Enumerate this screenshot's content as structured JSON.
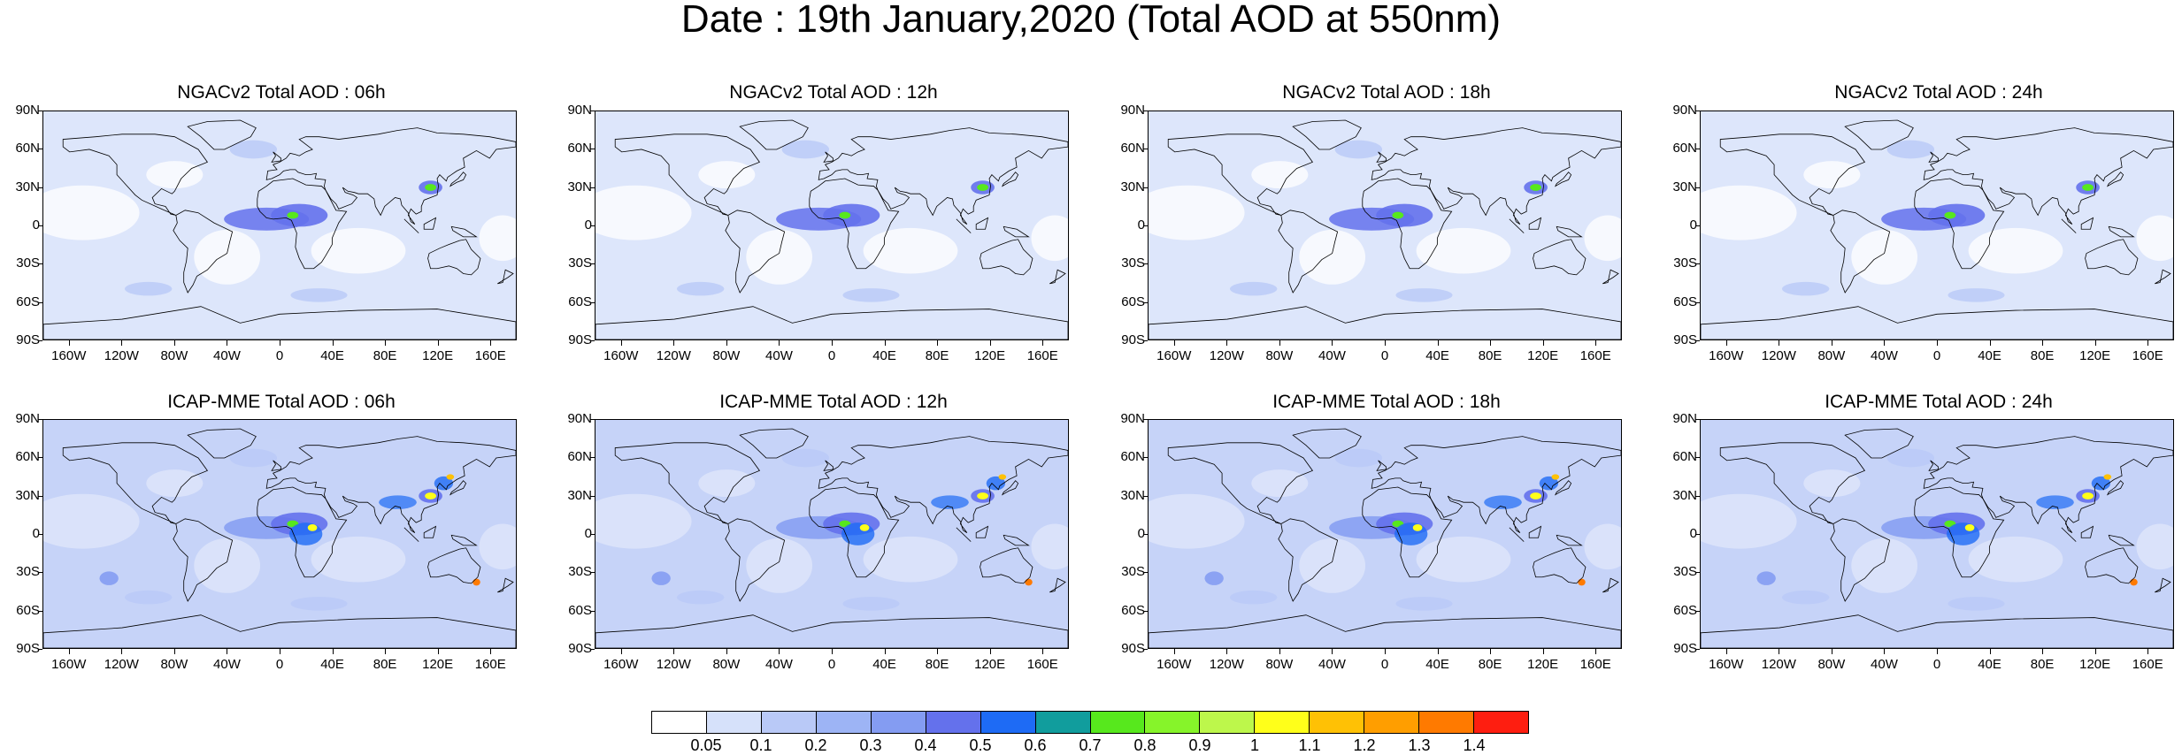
{
  "title": "Date : 19th January,2020 (Total AOD at 550nm)",
  "panels": [
    {
      "title": "NGACv2 Total AOD : 06h",
      "model": "NGACv2"
    },
    {
      "title": "NGACv2 Total AOD : 12h",
      "model": "NGACv2"
    },
    {
      "title": "NGACv2 Total AOD : 18h",
      "model": "NGACv2"
    },
    {
      "title": "NGACv2 Total AOD : 24h",
      "model": "NGACv2"
    },
    {
      "title": "ICAP-MME Total AOD : 06h",
      "model": "ICAP-MME"
    },
    {
      "title": "ICAP-MME Total AOD : 12h",
      "model": "ICAP-MME"
    },
    {
      "title": "ICAP-MME Total AOD : 18h",
      "model": "ICAP-MME"
    },
    {
      "title": "ICAP-MME Total AOD : 24h",
      "model": "ICAP-MME"
    }
  ],
  "lat_labels": [
    "90N",
    "60N",
    "30N",
    "0",
    "30S",
    "60S",
    "90S"
  ],
  "lon_labels": [
    "160W",
    "120W",
    "80W",
    "40W",
    "0",
    "40E",
    "80E",
    "120E",
    "160E"
  ],
  "colorbar": {
    "labels": [
      "0.05",
      "0.1",
      "0.2",
      "0.3",
      "0.4",
      "0.5",
      "0.6",
      "0.7",
      "0.8",
      "0.9",
      "1",
      "1.1",
      "1.2",
      "1.3",
      "1.4"
    ],
    "colors": [
      "#ffffff",
      "#d6e1fa",
      "#b9c9f7",
      "#9db4f5",
      "#849cf2",
      "#6471ec",
      "#1e6bf5",
      "#119d9d",
      "#57e81d",
      "#86f42a",
      "#bdf74b",
      "#ffff1a",
      "#ffc105",
      "#ff9e00",
      "#ff7a00",
      "#fe1e10"
    ]
  }
}
